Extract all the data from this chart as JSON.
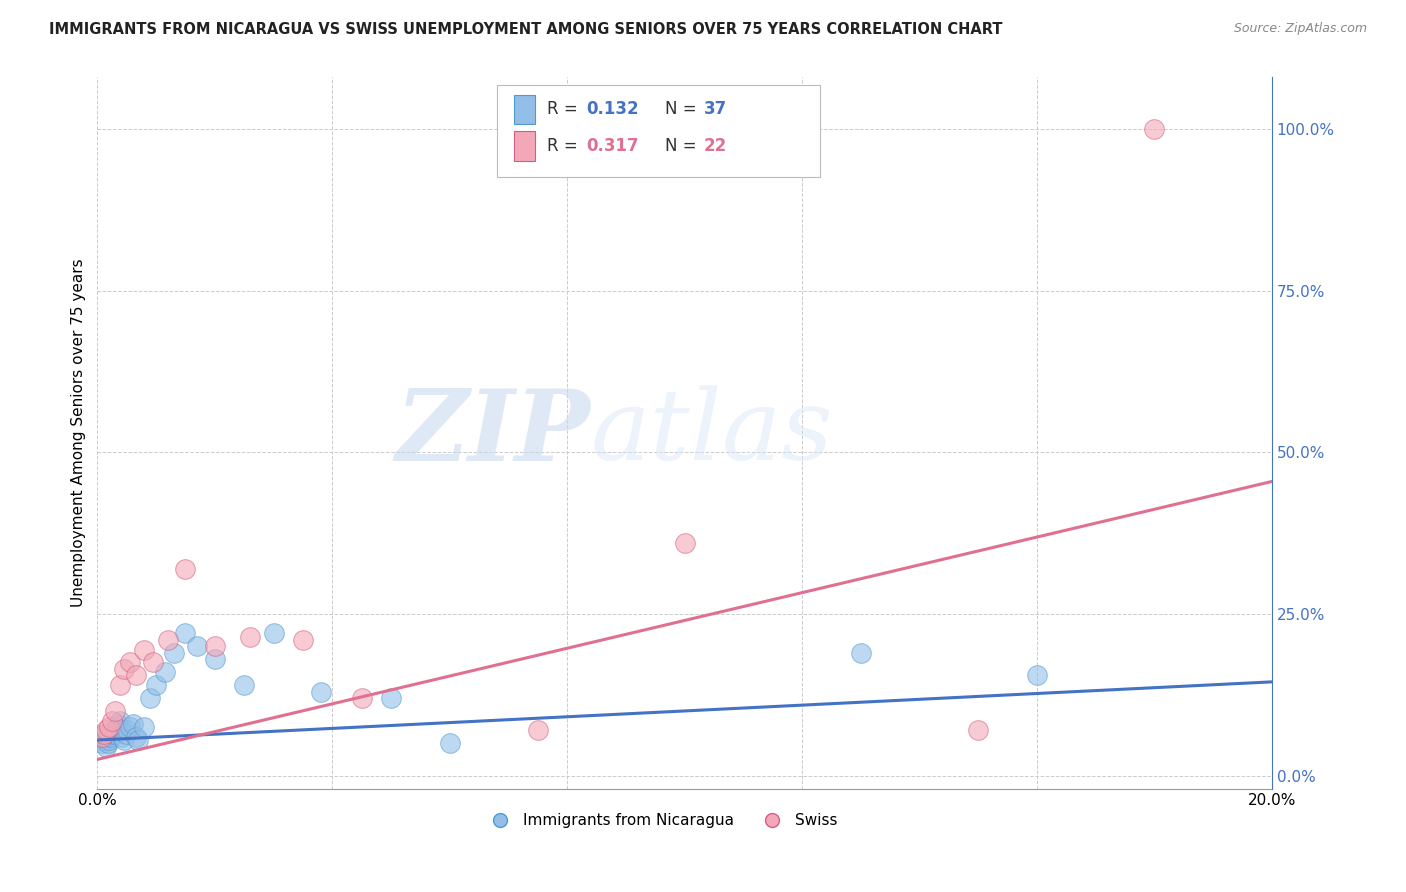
{
  "title": "IMMIGRANTS FROM NICARAGUA VS SWISS UNEMPLOYMENT AMONG SENIORS OVER 75 YEARS CORRELATION CHART",
  "source": "Source: ZipAtlas.com",
  "ylabel": "Unemployment Among Seniors over 75 years",
  "xlim": [
    0.0,
    0.2
  ],
  "ylim": [
    -0.02,
    1.08
  ],
  "x_ticks": [
    0.0,
    0.04,
    0.08,
    0.12,
    0.16,
    0.2
  ],
  "y_ticks_right": [
    0.0,
    0.25,
    0.5,
    0.75,
    1.0
  ],
  "y_tick_labels_right": [
    "0.0%",
    "25.0%",
    "50.0%",
    "75.0%",
    "100.0%"
  ],
  "legend_r1": "0.132",
  "legend_n1": "37",
  "legend_r2": "0.317",
  "legend_n2": "22",
  "blue_color": "#92BEE8",
  "pink_color": "#F2A8B8",
  "blue_line_color": "#4472C4",
  "pink_line_color": "#E07090",
  "blue_edge_color": "#5599CC",
  "pink_edge_color": "#D06080",
  "watermark_zip": "ZIP",
  "watermark_atlas": "atlas",
  "blue_scatter_x": [
    0.0008,
    0.001,
    0.0012,
    0.0015,
    0.0018,
    0.002,
    0.0022,
    0.0025,
    0.0028,
    0.003,
    0.0033,
    0.0035,
    0.0038,
    0.004,
    0.0042,
    0.0045,
    0.0048,
    0.005,
    0.0055,
    0.006,
    0.0065,
    0.007,
    0.008,
    0.009,
    0.01,
    0.0115,
    0.013,
    0.015,
    0.017,
    0.02,
    0.025,
    0.03,
    0.038,
    0.05,
    0.06,
    0.13,
    0.16
  ],
  "blue_scatter_y": [
    0.05,
    0.055,
    0.06,
    0.045,
    0.05,
    0.055,
    0.06,
    0.065,
    0.07,
    0.065,
    0.075,
    0.08,
    0.085,
    0.07,
    0.06,
    0.055,
    0.065,
    0.07,
    0.075,
    0.08,
    0.06,
    0.055,
    0.075,
    0.12,
    0.14,
    0.16,
    0.19,
    0.22,
    0.2,
    0.18,
    0.14,
    0.22,
    0.13,
    0.12,
    0.05,
    0.19,
    0.155
  ],
  "pink_scatter_x": [
    0.0008,
    0.0012,
    0.0015,
    0.002,
    0.0025,
    0.003,
    0.0038,
    0.0045,
    0.0055,
    0.0065,
    0.008,
    0.0095,
    0.012,
    0.015,
    0.02,
    0.026,
    0.035,
    0.045,
    0.075,
    0.1,
    0.15,
    0.18
  ],
  "pink_scatter_y": [
    0.06,
    0.065,
    0.07,
    0.075,
    0.085,
    0.1,
    0.14,
    0.165,
    0.175,
    0.155,
    0.195,
    0.175,
    0.21,
    0.32,
    0.2,
    0.215,
    0.21,
    0.12,
    0.07,
    0.36,
    0.07,
    1.0
  ],
  "blue_trend_x": [
    0.0,
    0.2
  ],
  "blue_trend_y": [
    0.055,
    0.145
  ],
  "pink_trend_x": [
    0.0,
    0.2
  ],
  "pink_trend_y": [
    0.025,
    0.455
  ]
}
